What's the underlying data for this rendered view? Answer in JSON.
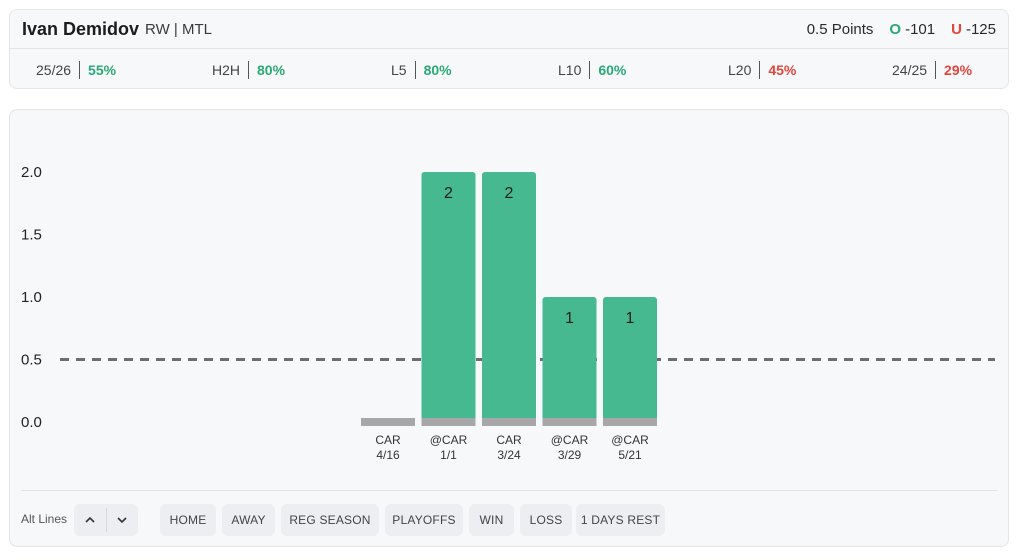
{
  "player": {
    "name": "Ivan Demidov",
    "meta": "RW | MTL",
    "line": "0.5 Points",
    "over_tag": "O",
    "over_odds": "-101",
    "under_tag": "U",
    "under_odds": "-125"
  },
  "stats": [
    {
      "label": "25/26",
      "value": "55%",
      "status": "good"
    },
    {
      "label": "H2H",
      "value": "80%",
      "status": "good"
    },
    {
      "label": "L5",
      "value": "80%",
      "status": "good"
    },
    {
      "label": "L10",
      "value": "60%",
      "status": "good"
    },
    {
      "label": "L20",
      "value": "45%",
      "status": "bad"
    },
    {
      "label": "24/25",
      "value": "29%",
      "status": "bad"
    }
  ],
  "colors": {
    "good": "#2aa876",
    "bad": "#e2453c",
    "bar_fill": "#46b991",
    "bar_base": "#a7a7a9",
    "line": "#6d6d70"
  },
  "chart_data": {
    "type": "bar",
    "categories": [
      "CAR 4/16",
      "@CAR 1/1",
      "CAR 3/24",
      "@CAR 3/29",
      "@CAR 5/21"
    ],
    "category_lines": [
      [
        "CAR",
        "4/16"
      ],
      [
        "@CAR",
        "1/1"
      ],
      [
        "CAR",
        "3/24"
      ],
      [
        "@CAR",
        "3/29"
      ],
      [
        "@CAR",
        "5/21"
      ]
    ],
    "values": [
      0,
      2,
      2,
      1,
      1
    ],
    "value_labels": [
      "",
      "2",
      "2",
      "1",
      "1"
    ],
    "ylim": [
      0,
      2.0
    ],
    "yticks": [
      "0.0",
      "0.5",
      "1.0",
      "1.5",
      "2.0"
    ],
    "line_value": 0.5,
    "grid": false
  },
  "controls": {
    "alt_lines_label": "Alt Lines",
    "up_icon": "chevron-up-icon",
    "down_icon": "chevron-down-icon",
    "filters": [
      "HOME",
      "AWAY",
      "REG SEASON",
      "PLAYOFFS",
      "WIN",
      "LOSS",
      "1 DAYS REST"
    ]
  }
}
